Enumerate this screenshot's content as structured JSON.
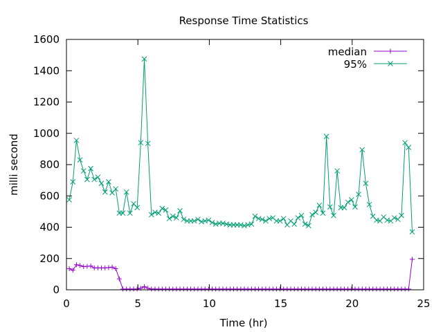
{
  "chart_data": {
    "type": "line",
    "title": "Response Time Statistics",
    "xlabel": "Time (hr)",
    "ylabel": "milli second",
    "xlim": [
      0,
      25
    ],
    "ylim": [
      0,
      1600
    ],
    "xticks": [
      0,
      5,
      10,
      15,
      20,
      25
    ],
    "yticks": [
      0,
      200,
      400,
      600,
      800,
      1000,
      1200,
      1400,
      1600
    ],
    "grid": false,
    "legend_position": "top-right",
    "series": [
      {
        "name": "median",
        "color": "#9400d3",
        "marker": "plus",
        "x": [
          0.2,
          0.45,
          0.7,
          0.95,
          1.2,
          1.45,
          1.7,
          1.95,
          2.2,
          2.45,
          2.7,
          2.95,
          3.2,
          3.45,
          3.7,
          3.95,
          4.2,
          4.45,
          4.7,
          4.95,
          5.2,
          5.45,
          5.7,
          5.95,
          6.2,
          6.45,
          6.7,
          6.95,
          7.2,
          7.45,
          7.7,
          7.95,
          8.2,
          8.45,
          8.7,
          8.95,
          9.2,
          9.45,
          9.7,
          9.95,
          10.2,
          10.45,
          10.7,
          10.95,
          11.2,
          11.45,
          11.7,
          11.95,
          12.2,
          12.45,
          12.7,
          12.95,
          13.2,
          13.45,
          13.7,
          13.95,
          14.2,
          14.45,
          14.7,
          14.95,
          15.2,
          15.45,
          15.7,
          15.95,
          16.2,
          16.45,
          16.7,
          16.95,
          17.2,
          17.45,
          17.7,
          17.95,
          18.2,
          18.45,
          18.7,
          18.95,
          19.2,
          19.45,
          19.7,
          19.95,
          20.2,
          20.45,
          20.7,
          20.95,
          21.2,
          21.45,
          21.7,
          21.95,
          22.2,
          22.45,
          22.7,
          22.95,
          23.2,
          23.45,
          23.7,
          23.95,
          24.2
        ],
        "values": [
          135,
          125,
          160,
          155,
          148,
          150,
          152,
          140,
          140,
          140,
          140,
          142,
          145,
          135,
          70,
          5,
          5,
          5,
          5,
          5,
          10,
          20,
          10,
          5,
          5,
          5,
          5,
          5,
          5,
          5,
          5,
          5,
          5,
          5,
          5,
          5,
          5,
          5,
          5,
          5,
          5,
          5,
          5,
          5,
          5,
          5,
          5,
          5,
          5,
          5,
          5,
          5,
          5,
          5,
          5,
          5,
          5,
          5,
          5,
          5,
          5,
          5,
          5,
          5,
          5,
          5,
          5,
          5,
          5,
          5,
          5,
          5,
          5,
          5,
          5,
          5,
          5,
          5,
          5,
          5,
          5,
          5,
          5,
          5,
          5,
          5,
          5,
          5,
          5,
          5,
          5,
          5,
          5,
          5,
          5,
          5,
          195
        ]
      },
      {
        "name": "95%",
        "color": "#009e73",
        "marker": "cross",
        "x": [
          0.2,
          0.45,
          0.7,
          0.95,
          1.2,
          1.45,
          1.7,
          1.95,
          2.2,
          2.45,
          2.7,
          2.95,
          3.2,
          3.45,
          3.7,
          3.95,
          4.2,
          4.45,
          4.7,
          4.95,
          5.2,
          5.45,
          5.7,
          5.95,
          6.2,
          6.45,
          6.7,
          6.95,
          7.2,
          7.45,
          7.7,
          7.95,
          8.2,
          8.45,
          8.7,
          8.95,
          9.2,
          9.45,
          9.7,
          9.95,
          10.2,
          10.45,
          10.7,
          10.95,
          11.2,
          11.45,
          11.7,
          11.95,
          12.2,
          12.45,
          12.7,
          12.95,
          13.2,
          13.45,
          13.7,
          13.95,
          14.2,
          14.45,
          14.7,
          14.95,
          15.2,
          15.45,
          15.7,
          15.95,
          16.2,
          16.45,
          16.7,
          16.95,
          17.2,
          17.45,
          17.7,
          17.95,
          18.2,
          18.45,
          18.7,
          18.95,
          19.2,
          19.45,
          19.7,
          19.95,
          20.2,
          20.45,
          20.7,
          20.95,
          21.2,
          21.45,
          21.7,
          21.95,
          22.2,
          22.45,
          22.7,
          22.95,
          23.2,
          23.45,
          23.7,
          23.95,
          24.2
        ],
        "values": [
          575,
          690,
          955,
          830,
          760,
          705,
          775,
          705,
          720,
          680,
          625,
          690,
          620,
          645,
          490,
          490,
          625,
          490,
          550,
          525,
          940,
          1475,
          935,
          480,
          495,
          490,
          520,
          510,
          455,
          470,
          460,
          505,
          450,
          440,
          440,
          440,
          450,
          435,
          440,
          445,
          430,
          420,
          425,
          425,
          420,
          415,
          415,
          415,
          415,
          410,
          415,
          420,
          470,
          455,
          450,
          440,
          455,
          460,
          440,
          440,
          455,
          415,
          440,
          420,
          460,
          475,
          420,
          410,
          480,
          495,
          540,
          490,
          980,
          530,
          475,
          760,
          525,
          525,
          560,
          575,
          530,
          610,
          895,
          680,
          545,
          470,
          445,
          440,
          465,
          445,
          440,
          460,
          450,
          475,
          940,
          910,
          370
        ]
      }
    ]
  }
}
